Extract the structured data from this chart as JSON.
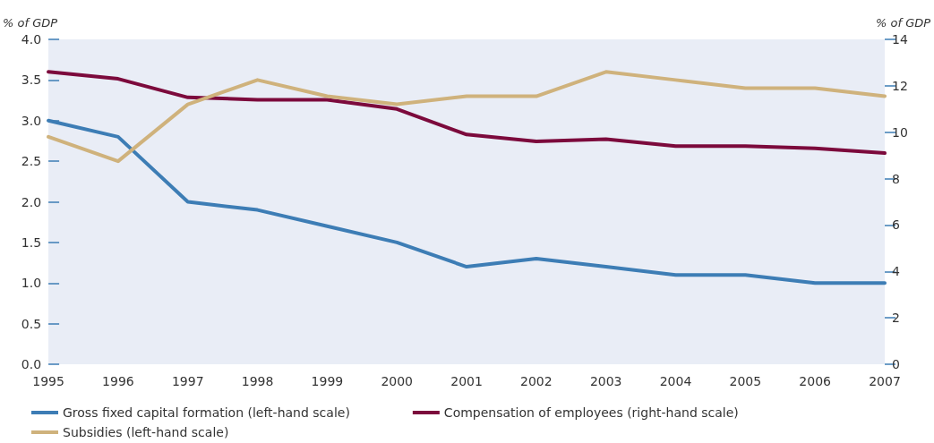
{
  "chart_data": {
    "type": "line",
    "ylabel": "% of GDP",
    "y2label": "% of GDP",
    "categories": [
      "1995",
      "1996",
      "1997",
      "1998",
      "1999",
      "2000",
      "2001",
      "2002",
      "2003",
      "2004",
      "2005",
      "2006",
      "2007"
    ],
    "series": [
      {
        "name": "Gross fixed capital formation (left-hand scale)",
        "color": "#3d7db5",
        "values": [
          3.0,
          2.8,
          2.0,
          1.9,
          1.7,
          1.5,
          1.2,
          1.3,
          1.2,
          1.1,
          1.1,
          1.0,
          1.0
        ]
      },
      {
        "name": "Compensation of employees (right-hand scale)",
        "color": "#7c0a3c",
        "axis": "y2",
        "values": [
          12.6,
          12.3,
          11.5,
          11.4,
          11.4,
          11.0,
          9.9,
          9.6,
          9.7,
          9.4,
          9.4,
          9.3,
          9.1
        ]
      },
      {
        "name": "Subsidies (left-hand scale)",
        "color": "#cfb27c",
        "values": [
          2.8,
          2.5,
          3.2,
          3.5,
          3.3,
          3.2,
          3.3,
          3.3,
          3.6,
          3.5,
          3.4,
          3.4,
          3.3
        ]
      }
    ],
    "ylim": [
      0,
      4
    ],
    "yticks": [
      {
        "value": 0,
        "label": "0.0"
      },
      {
        "value": 0.5,
        "label": "0.5"
      },
      {
        "value": 1,
        "label": "1.0"
      },
      {
        "value": 1.5,
        "label": "1.5"
      },
      {
        "value": 2,
        "label": "2.0"
      },
      {
        "value": 2.5,
        "label": "2.5"
      },
      {
        "value": 3,
        "label": "3.0"
      },
      {
        "value": 3.5,
        "label": "3.5"
      },
      {
        "value": 4,
        "label": "4.0"
      }
    ],
    "y2lim": [
      0,
      14
    ],
    "y2ticks": [
      0,
      2,
      4,
      6,
      8,
      10,
      12,
      14
    ],
    "grid": false,
    "legend": "bottom",
    "marker": "none",
    "line_style": "solid"
  }
}
